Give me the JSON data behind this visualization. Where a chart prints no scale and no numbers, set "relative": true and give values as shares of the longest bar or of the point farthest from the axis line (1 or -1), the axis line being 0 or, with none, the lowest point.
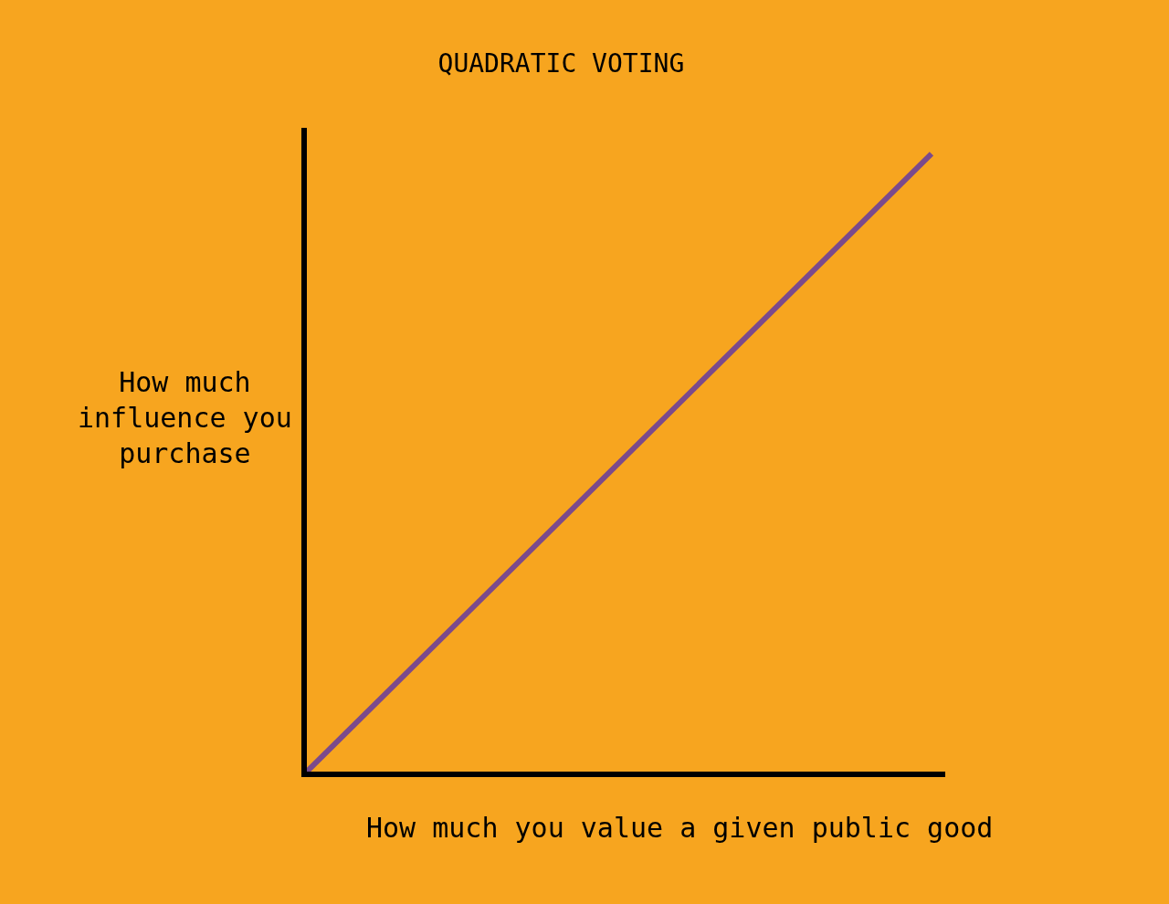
{
  "chart_data": {
    "type": "line",
    "title": "QUADRATIC VOTING",
    "xlabel": "How much you value a given public good",
    "ylabel": "How much\ninfluence you\npurchase",
    "categories": [
      null,
      null
    ],
    "series": [
      {
        "color": "#7b4a8c",
        "values": [
          0,
          1
        ]
      }
    ],
    "relative": true,
    "grid": false,
    "marker": "none",
    "line_style": "solid"
  }
}
